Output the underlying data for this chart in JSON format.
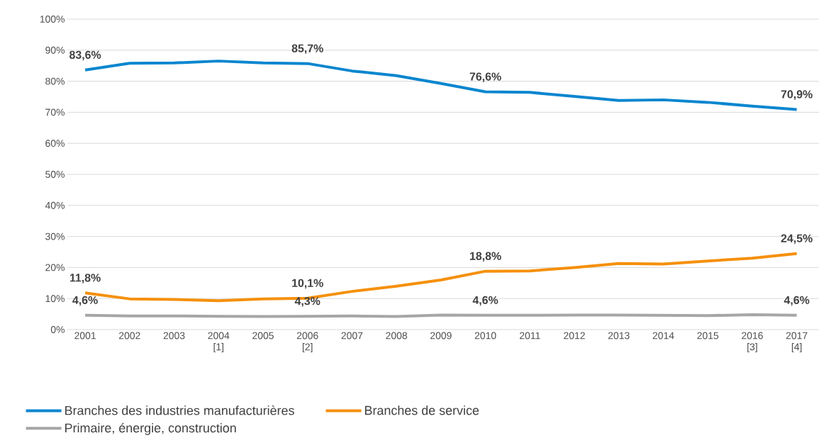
{
  "chart_data": {
    "type": "line",
    "categories": [
      "2001",
      "2002",
      "2003",
      "2004 [1]",
      "2005",
      "2006 [2]",
      "2007",
      "2008",
      "2009",
      "2010",
      "2011",
      "2012",
      "2013",
      "2014",
      "2015",
      "2016 [3]",
      "2017 [4]"
    ],
    "series": [
      {
        "name": "Branches des industries manufacturières",
        "color": "#0a86cf",
        "values": [
          83.6,
          85.8,
          85.9,
          86.5,
          85.9,
          85.7,
          83.3,
          81.8,
          79.3,
          76.6,
          76.4,
          75.1,
          73.8,
          74.0,
          73.2,
          72.0,
          70.9
        ],
        "value_labels": [
          "83,6%",
          null,
          null,
          null,
          null,
          "85,7%",
          null,
          null,
          null,
          "76,6%",
          null,
          null,
          null,
          null,
          null,
          null,
          "70,9%"
        ]
      },
      {
        "name": "Branches de service",
        "color": "#f5900c",
        "values": [
          11.8,
          9.9,
          9.7,
          9.3,
          9.9,
          10.1,
          12.3,
          14.0,
          16.0,
          18.8,
          18.9,
          20.0,
          21.3,
          21.1,
          22.1,
          23.0,
          24.5
        ],
        "value_labels": [
          "11,8%",
          null,
          null,
          null,
          null,
          "10,1%",
          null,
          null,
          null,
          "18,8%",
          null,
          null,
          null,
          null,
          null,
          null,
          "24,5%"
        ]
      },
      {
        "name": "Primaire, énergie, construction",
        "color": "#a6a6a6",
        "values": [
          4.6,
          4.4,
          4.4,
          4.3,
          4.2,
          4.3,
          4.4,
          4.2,
          4.7,
          4.6,
          4.6,
          4.7,
          4.7,
          4.6,
          4.5,
          4.8,
          4.6
        ],
        "value_labels": [
          "4,6%",
          null,
          null,
          null,
          null,
          "4,3%",
          null,
          null,
          null,
          "4,6%",
          null,
          null,
          null,
          null,
          null,
          null,
          "4,6%"
        ]
      }
    ],
    "ylim": [
      0,
      100
    ],
    "yticks": [
      {
        "value": 0,
        "label": "0%"
      },
      {
        "value": 10,
        "label": "10%"
      },
      {
        "value": 20,
        "label": "20%"
      },
      {
        "value": 30,
        "label": "30%"
      },
      {
        "value": 40,
        "label": "40%"
      },
      {
        "value": 50,
        "label": "50%"
      },
      {
        "value": 60,
        "label": "60%"
      },
      {
        "value": 70,
        "label": "70%"
      },
      {
        "value": 80,
        "label": "80%"
      },
      {
        "value": 90,
        "label": "90%"
      },
      {
        "value": 100,
        "label": "100%"
      }
    ],
    "grid": "y",
    "legend": "bottom",
    "marker": "none",
    "line_style": "solid"
  }
}
